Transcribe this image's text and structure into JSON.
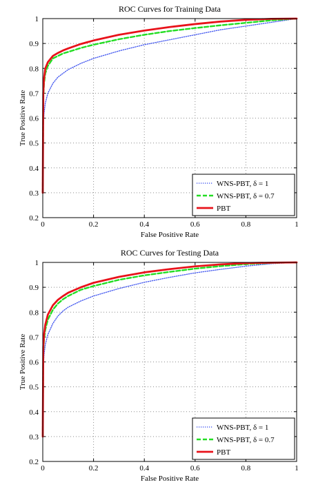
{
  "chart_data": [
    {
      "type": "line",
      "title": "ROC Curves for Training Data",
      "xlabel": "False Positive Rate",
      "ylabel": "True Positive Rate",
      "xlim": [
        0,
        1
      ],
      "ylim": [
        0.2,
        1
      ],
      "xticks": [
        "0",
        "0.2",
        "0.4",
        "0.6",
        "0.8",
        "1"
      ],
      "yticks": [
        "0.2",
        "0.3",
        "0.4",
        "0.5",
        "0.6",
        "0.7",
        "0.8",
        "0.9",
        "1"
      ],
      "grid": true,
      "legend": "bottom-right",
      "series": [
        {
          "name": "WNS-PBT, δ = 1",
          "color": "#4a5ef0",
          "style": "dotted",
          "x": [
            0,
            0.002,
            0.005,
            0.01,
            0.02,
            0.04,
            0.06,
            0.08,
            0.1,
            0.15,
            0.2,
            0.3,
            0.4,
            0.5,
            0.6,
            0.7,
            0.8,
            0.9,
            1.0
          ],
          "y": [
            0.3,
            0.56,
            0.62,
            0.66,
            0.7,
            0.74,
            0.765,
            0.78,
            0.795,
            0.82,
            0.84,
            0.87,
            0.895,
            0.915,
            0.935,
            0.955,
            0.97,
            0.985,
            1.0
          ]
        },
        {
          "name": "WNS-PBT, δ = 0.7",
          "color": "#22dd22",
          "style": "dashed",
          "x": [
            0,
            0.002,
            0.005,
            0.01,
            0.02,
            0.04,
            0.06,
            0.08,
            0.1,
            0.15,
            0.2,
            0.3,
            0.4,
            0.5,
            0.6,
            0.7,
            0.8,
            0.9,
            1.0
          ],
          "y": [
            0.3,
            0.68,
            0.74,
            0.78,
            0.81,
            0.84,
            0.85,
            0.86,
            0.866,
            0.882,
            0.895,
            0.917,
            0.935,
            0.95,
            0.962,
            0.973,
            0.983,
            0.993,
            1.0
          ]
        },
        {
          "name": "PBT",
          "color": "#e8121a",
          "style": "solid",
          "x": [
            0,
            0.002,
            0.005,
            0.01,
            0.02,
            0.04,
            0.06,
            0.08,
            0.1,
            0.15,
            0.2,
            0.3,
            0.4,
            0.5,
            0.6,
            0.7,
            0.8,
            0.9,
            1.0
          ],
          "y": [
            0.3,
            0.7,
            0.76,
            0.8,
            0.825,
            0.85,
            0.862,
            0.872,
            0.88,
            0.898,
            0.912,
            0.935,
            0.952,
            0.966,
            0.978,
            0.988,
            0.995,
            0.999,
            1.0
          ]
        }
      ]
    },
    {
      "type": "line",
      "title": "ROC Curves for Testing Data",
      "xlabel": "False Positive Rate",
      "ylabel": "True Positive Rate",
      "xlim": [
        0,
        1
      ],
      "ylim": [
        0.2,
        1
      ],
      "xticks": [
        "0",
        "0.2",
        "0.4",
        "0.6",
        "0.8",
        "1"
      ],
      "yticks": [
        "0.2",
        "0.3",
        "0.4",
        "0.5",
        "0.6",
        "0.7",
        "0.8",
        "0.9",
        "1"
      ],
      "grid": true,
      "legend": "bottom-right",
      "series": [
        {
          "name": "WNS-PBT, δ = 1",
          "color": "#4a5ef0",
          "style": "dotted",
          "x": [
            0,
            0.002,
            0.005,
            0.01,
            0.02,
            0.04,
            0.06,
            0.08,
            0.1,
            0.15,
            0.2,
            0.3,
            0.4,
            0.5,
            0.6,
            0.7,
            0.8,
            0.9,
            1.0
          ],
          "y": [
            0.3,
            0.58,
            0.63,
            0.67,
            0.71,
            0.755,
            0.785,
            0.805,
            0.82,
            0.845,
            0.865,
            0.895,
            0.92,
            0.94,
            0.958,
            0.972,
            0.985,
            0.995,
            1.0
          ]
        },
        {
          "name": "WNS-PBT, δ = 0.7",
          "color": "#22dd22",
          "style": "dashed",
          "x": [
            0,
            0.002,
            0.005,
            0.01,
            0.02,
            0.04,
            0.06,
            0.08,
            0.1,
            0.15,
            0.2,
            0.3,
            0.4,
            0.5,
            0.6,
            0.7,
            0.8,
            0.9,
            1.0
          ],
          "y": [
            0.3,
            0.64,
            0.69,
            0.73,
            0.77,
            0.81,
            0.835,
            0.852,
            0.865,
            0.89,
            0.905,
            0.93,
            0.948,
            0.962,
            0.975,
            0.985,
            0.993,
            0.998,
            1.0
          ]
        },
        {
          "name": "PBT",
          "color": "#e8121a",
          "style": "solid",
          "x": [
            0,
            0.002,
            0.005,
            0.01,
            0.02,
            0.04,
            0.06,
            0.08,
            0.1,
            0.15,
            0.2,
            0.3,
            0.4,
            0.5,
            0.6,
            0.7,
            0.8,
            0.9,
            1.0
          ],
          "y": [
            0.3,
            0.66,
            0.71,
            0.75,
            0.79,
            0.828,
            0.85,
            0.865,
            0.878,
            0.9,
            0.918,
            0.942,
            0.96,
            0.973,
            0.984,
            0.992,
            0.997,
            0.999,
            1.0
          ]
        }
      ]
    }
  ]
}
